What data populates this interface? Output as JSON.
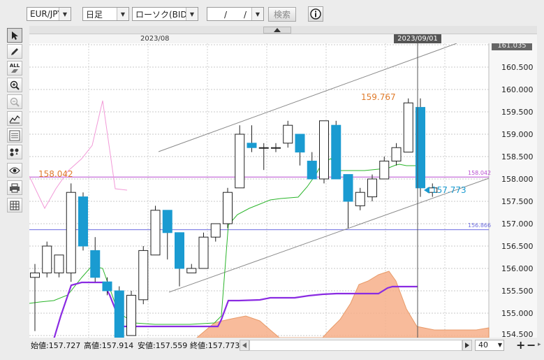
{
  "toolbar": {
    "currency_pair": "EUR/JPY",
    "period": "日足",
    "chart_type": "ローソク(BID)",
    "date_input": "　/　/",
    "search_label": "検索",
    "info_icon": "info-icon"
  },
  "chart_header": {
    "month_label": "2023/08",
    "cursor_date": "2023/09/01",
    "collapse_icon": "triangle-up-icon"
  },
  "price_axis": {
    "top_label": "161.035",
    "ticks": [
      "160.500",
      "160.000",
      "159.500",
      "159.000",
      "158.500",
      "158.000",
      "157.500",
      "157.000",
      "156.500",
      "156.000",
      "155.500",
      "155.000",
      "154.500"
    ],
    "level_158": "158.042",
    "level_156": "156.866"
  },
  "annotations": {
    "high_label": "159.767",
    "line_label": "158.042",
    "current_price": "157.773"
  },
  "sidebar_icons": [
    "cursor-icon",
    "pencil-icon",
    "delete-all-icon",
    "zoom-in-icon",
    "zoom-out-icon",
    "indicator-icon",
    "tech-indicator-icon",
    "settings-icon",
    "eye-icon",
    "print-icon",
    "table-icon"
  ],
  "sidebar_labels": {
    "all": "ALL"
  },
  "status_bar": {
    "open": "始値:157.727",
    "high": "高値:157.914",
    "low": "安値:157.559",
    "close": "終値:157.773",
    "zoom": "40"
  },
  "colors": {
    "up_candle": "#ffffff",
    "down_candle": "#1a9bd1",
    "cloud": "#f7b08a",
    "purple_line": "#8a2be2",
    "green_line": "#2bb52b",
    "pink_line": "#f29ad8",
    "hline_magenta": "#b84fd0",
    "hline_blue": "#6d6de0"
  },
  "chart_data": {
    "type": "candlestick",
    "candles": [
      {
        "o": 155.8,
        "h": 156.1,
        "l": 154.6,
        "c": 155.9
      },
      {
        "o": 155.9,
        "h": 156.6,
        "l": 155.8,
        "c": 156.5
      },
      {
        "o": 155.9,
        "h": 156.3,
        "l": 155.8,
        "c": 156.3
      },
      {
        "o": 155.9,
        "h": 157.9,
        "l": 155.7,
        "c": 157.7
      },
      {
        "o": 157.6,
        "h": 157.7,
        "l": 156.4,
        "c": 156.5
      },
      {
        "o": 156.4,
        "h": 156.7,
        "l": 155.7,
        "c": 155.8
      },
      {
        "o": 155.7,
        "h": 155.8,
        "l": 155.4,
        "c": 155.5
      },
      {
        "o": 155.5,
        "h": 155.6,
        "l": 154.2,
        "c": 154.3
      },
      {
        "o": 154.5,
        "h": 155.5,
        "l": 154.5,
        "c": 155.4
      },
      {
        "o": 155.3,
        "h": 156.5,
        "l": 155.2,
        "c": 156.4
      },
      {
        "o": 156.3,
        "h": 157.4,
        "l": 156.3,
        "c": 157.3
      },
      {
        "o": 157.3,
        "h": 157.3,
        "l": 156.2,
        "c": 156.8
      },
      {
        "o": 156.8,
        "h": 156.8,
        "l": 155.6,
        "c": 156.0
      },
      {
        "o": 155.9,
        "h": 156.1,
        "l": 155.9,
        "c": 156.0
      },
      {
        "o": 156.0,
        "h": 156.8,
        "l": 156.0,
        "c": 156.7
      },
      {
        "o": 156.7,
        "h": 157.0,
        "l": 156.6,
        "c": 157.0
      },
      {
        "o": 157.0,
        "h": 157.8,
        "l": 156.9,
        "c": 157.7
      },
      {
        "o": 157.8,
        "h": 159.2,
        "l": 157.8,
        "c": 159.0
      },
      {
        "o": 158.8,
        "h": 159.2,
        "l": 158.6,
        "c": 158.7
      },
      {
        "o": 158.7,
        "h": 158.8,
        "l": 158.2,
        "c": 158.7
      },
      {
        "o": 158.7,
        "h": 158.8,
        "l": 158.6,
        "c": 158.7
      },
      {
        "o": 158.8,
        "h": 159.3,
        "l": 158.7,
        "c": 159.2
      },
      {
        "o": 159.0,
        "h": 159.0,
        "l": 158.3,
        "c": 158.6
      },
      {
        "o": 158.4,
        "h": 158.6,
        "l": 158.0,
        "c": 158.0
      },
      {
        "o": 158.0,
        "h": 159.3,
        "l": 157.9,
        "c": 159.3
      },
      {
        "o": 159.2,
        "h": 159.3,
        "l": 158.0,
        "c": 158.0
      },
      {
        "o": 158.1,
        "h": 158.1,
        "l": 156.9,
        "c": 157.5
      },
      {
        "o": 157.4,
        "h": 157.8,
        "l": 157.3,
        "c": 157.7
      },
      {
        "o": 157.6,
        "h": 158.1,
        "l": 157.5,
        "c": 158.0
      },
      {
        "o": 158.0,
        "h": 158.5,
        "l": 158.0,
        "c": 158.4
      },
      {
        "o": 158.4,
        "h": 158.8,
        "l": 158.3,
        "c": 158.7
      },
      {
        "o": 158.6,
        "h": 159.8,
        "l": 158.6,
        "c": 159.7
      },
      {
        "o": 159.6,
        "h": 159.8,
        "l": 157.6,
        "c": 157.8
      },
      {
        "o": 157.7,
        "h": 157.9,
        "l": 157.6,
        "c": 157.8
      }
    ]
  }
}
